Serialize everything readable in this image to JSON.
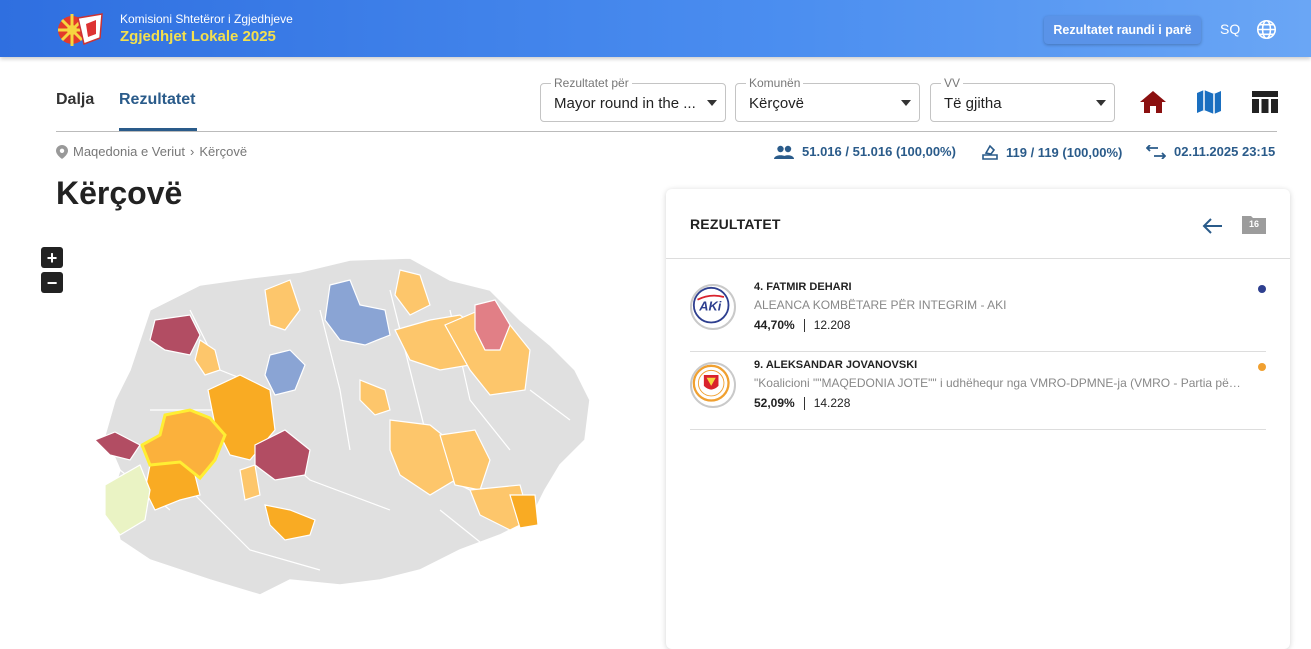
{
  "header": {
    "org": "Komisioni Shtetëror i Zgjedhjeve",
    "election": "Zgjedhjet Lokale 2025",
    "round_button": "Rezultatet raundi i parë",
    "language": "SQ"
  },
  "tabs": [
    {
      "label": "Dalja"
    },
    {
      "label": "Rezultatet"
    }
  ],
  "filters": {
    "results_for": {
      "label": "Rezultatet për",
      "value": "Mayor round in the ..."
    },
    "municipality": {
      "label": "Komunën",
      "value": "Kërçovë"
    },
    "polling": {
      "label": "VV",
      "value": "Të gjitha"
    }
  },
  "breadcrumb": [
    "Maqedonia e Veriut",
    "Kërçovë"
  ],
  "stats": {
    "voters": "51.016 / 51.016 (100,00%)",
    "stations": "119 / 119 (100,00%)",
    "updated": "02.11.2025 23:15"
  },
  "page_title": "Kërçovë",
  "zoom": {
    "in": "+",
    "out": "−"
  },
  "panel": {
    "title": "REZULTATET",
    "folder_count": "16",
    "candidates": [
      {
        "name": "4. FATMIR DEHARI",
        "party": "ALEANCA KOMBËTARE PËR INTEGRIM - AKI",
        "percent": "44,70%",
        "votes": "12.208",
        "color": "#2e3f8f"
      },
      {
        "name": "9. ALEKSANDAR JOVANOVSKI",
        "party": "\"Koalicioni \"\"MAQEDONIA JOTE\"\" i udhëhequr nga VMRO-DPMNE-ja (VMRO - Partia për Unitetin Kombëtar Maqedonas)",
        "percent": "52,09%",
        "votes": "14.228",
        "color": "#f0a030"
      }
    ]
  },
  "map_colors": {
    "gray": "#e0e0e0",
    "light_orange": "#fdc66b",
    "orange": "#f9ab23",
    "maroon": "#b24d63",
    "pink": "#e17f86",
    "blue": "#8aa4d4",
    "pale": "#eaf3c4",
    "highlight": "#ffee33"
  }
}
